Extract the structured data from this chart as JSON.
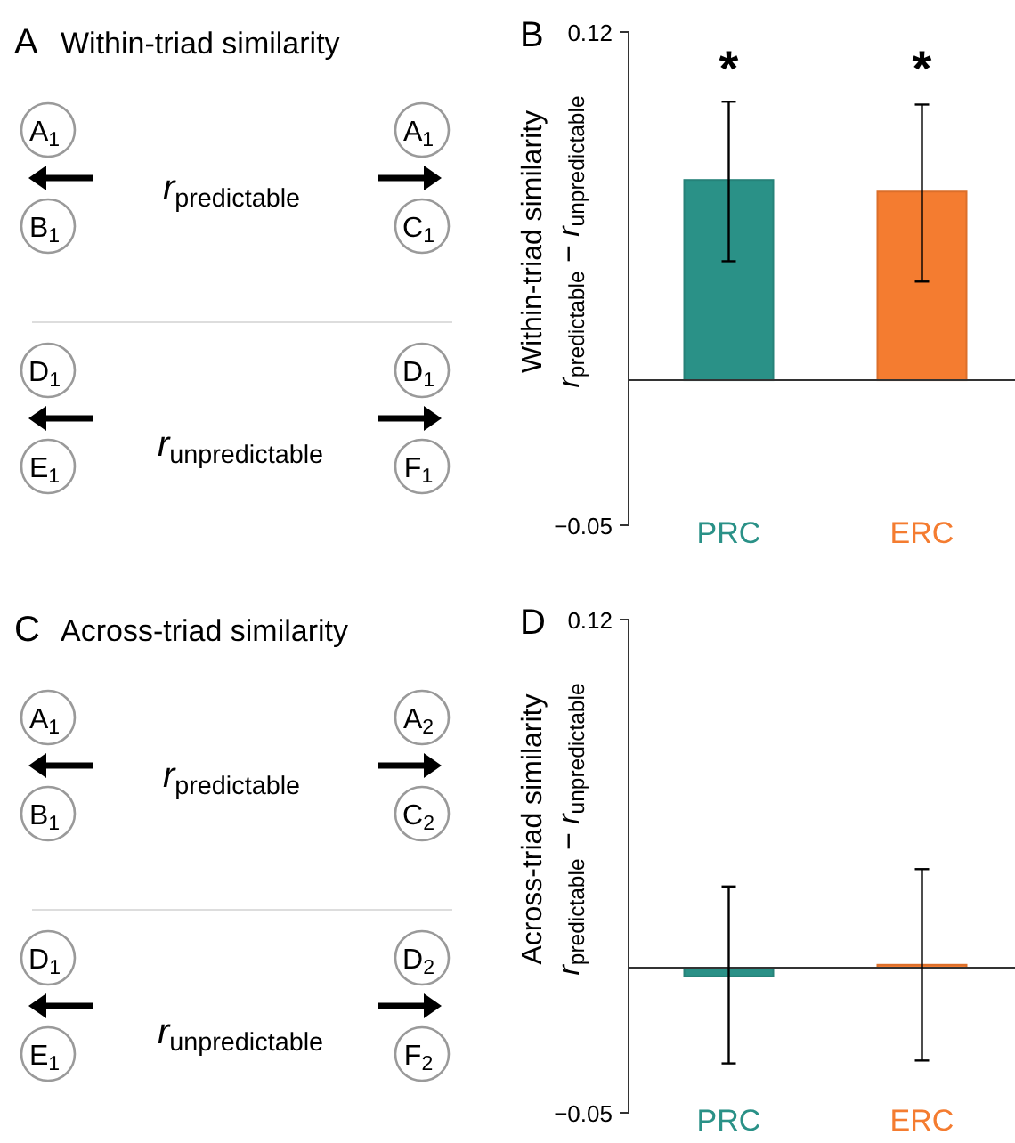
{
  "chart_data": [
    {
      "type": "other",
      "title": "A",
      "subtitle": "Within-triad similarity",
      "annotations": [
        "A$_{1}$",
        "B$_{1}$",
        "A$_{1}$",
        "C$_{1}$",
        "D$_{1}$",
        "E$_{1}$",
        "D$_{1}$",
        "F$_{1}$",
        "r$_{predictable}$",
        "r$_{unpredictable}$"
      ]
    },
    {
      "type": "bar",
      "title": "B",
      "ylabel": "Within-triad similarity\nr$_{predictable}$ − r$_{unpredictable}$",
      "categories": [
        "PRC",
        "ERC"
      ],
      "values": [
        0.069,
        0.065
      ],
      "colors": [
        "#2a9187",
        "#f47c30"
      ],
      "errors": [
        [
          0.041,
          0.096
        ],
        [
          0.034,
          0.095
        ]
      ],
      "ylim": [
        -0.05,
        0.12
      ],
      "yticks": [
        -0.05,
        0.12
      ],
      "annotations": [
        "*",
        "*"
      ]
    },
    {
      "type": "other",
      "title": "C",
      "subtitle": "Across-triad similarity",
      "annotations": [
        "A$_{1}$",
        "B$_{1}$",
        "A$_{2}$",
        "C$_{2}$",
        "D$_{1}$",
        "E$_{1}$",
        "D$_{2}$",
        "F$_{2}$",
        "r$_{predictable}$",
        "r$_{unpredictable}$"
      ]
    },
    {
      "type": "bar",
      "title": "D",
      "ylabel": "Across-triad similarity\nr$_{predictable}$ − r$_{unpredictable}$",
      "categories": [
        "PRC",
        "ERC"
      ],
      "values": [
        -0.003,
        0.001
      ],
      "colors": [
        "#2a9187",
        "#f47c30"
      ],
      "errors": [
        [
          -0.033,
          0.028
        ],
        [
          -0.032,
          0.034
        ]
      ],
      "ylim": [
        -0.05,
        0.12
      ],
      "yticks": [
        -0.05,
        0.12
      ]
    }
  ]
}
